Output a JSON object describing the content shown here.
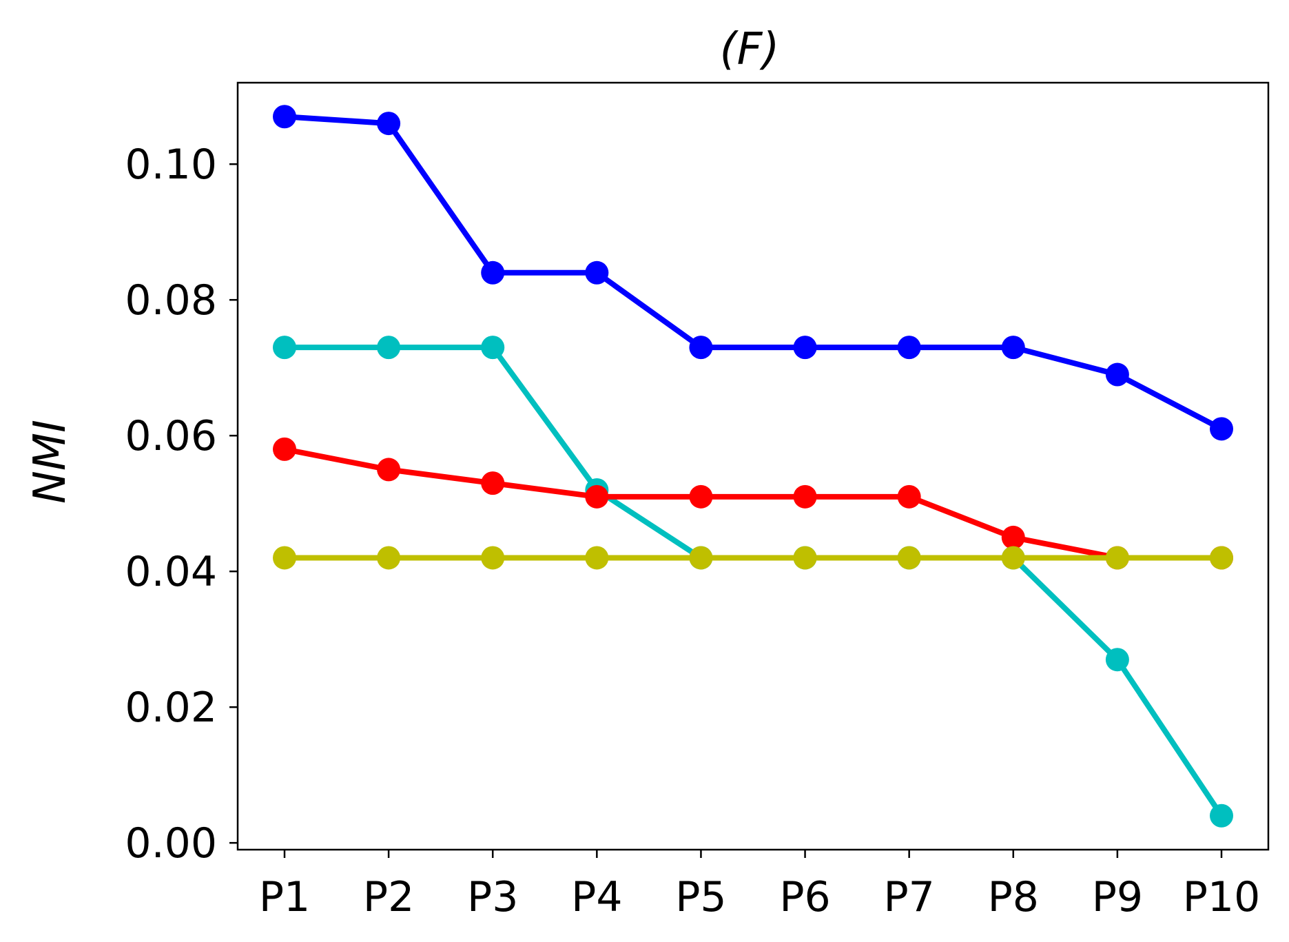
{
  "chart_data": {
    "type": "line",
    "title": "(F)",
    "xlabel": "",
    "ylabel": "NMI",
    "categories": [
      "P1",
      "P2",
      "P3",
      "P4",
      "P5",
      "P6",
      "P7",
      "P8",
      "P9",
      "P10"
    ],
    "ylim": [
      -0.001,
      0.112
    ],
    "yticks": [
      "0.00",
      "0.02",
      "0.04",
      "0.06",
      "0.08",
      "0.10"
    ],
    "grid": false,
    "legend": "none",
    "series": [
      {
        "color": "#0000ff",
        "values": [
          0.107,
          0.106,
          0.084,
          0.084,
          0.073,
          0.073,
          0.073,
          0.073,
          0.069,
          0.061
        ]
      },
      {
        "color": "#00bfbf",
        "values": [
          0.073,
          0.073,
          0.073,
          0.052,
          0.042,
          0.042,
          0.042,
          0.042,
          0.027,
          0.004
        ]
      },
      {
        "color": "#ff0000",
        "values": [
          0.058,
          0.055,
          0.053,
          0.051,
          0.051,
          0.051,
          0.051,
          0.045,
          0.042,
          0.042
        ]
      },
      {
        "color": "#bfbf00",
        "values": [
          0.042,
          0.042,
          0.042,
          0.042,
          0.042,
          0.042,
          0.042,
          0.042,
          0.042,
          0.042
        ]
      }
    ]
  }
}
